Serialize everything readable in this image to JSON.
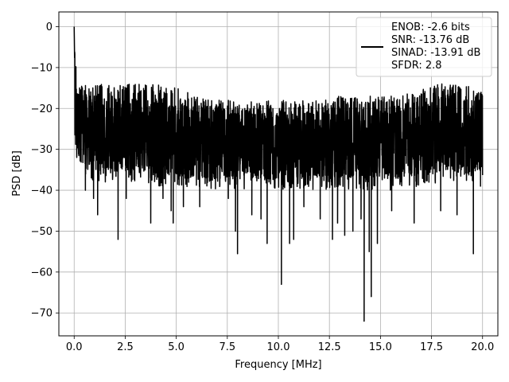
{
  "chart_data": {
    "type": "line",
    "title": "",
    "xlabel": "Frequency [MHz]",
    "ylabel": "PSD [dB]",
    "xlim": [
      -0.75,
      20.75
    ],
    "ylim": [
      -75.6,
      3.6
    ],
    "xticks": [
      0.0,
      2.5,
      5.0,
      7.5,
      10.0,
      12.5,
      15.0,
      17.5,
      20.0
    ],
    "xtick_labels": [
      "0.0",
      "2.5",
      "5.0",
      "7.5",
      "10.0",
      "12.5",
      "15.0",
      "17.5",
      "20.0"
    ],
    "yticks": [
      0,
      -10,
      -20,
      -30,
      -40,
      -50,
      -60,
      -70
    ],
    "ytick_labels": [
      "0",
      "−10",
      "−20",
      "−30",
      "−40",
      "−50",
      "−60",
      "−70"
    ],
    "grid": true,
    "legend_position": "top-right",
    "legend_lines": [
      "ENOB: -2.6 bits",
      "SNR: -13.76 dB",
      "SINAD: -13.91 dB",
      "SFDR: 2.8"
    ],
    "series": [
      {
        "color": "#000000",
        "band": {
          "x": [
            0.0,
            0.05,
            0.1,
            0.2,
            0.4,
            1,
            2,
            3,
            4,
            5,
            6,
            7,
            8,
            9,
            10,
            11,
            12,
            13,
            14,
            15,
            16,
            17,
            18,
            19,
            20
          ],
          "upper": [
            0,
            -4,
            -10,
            -13,
            -14,
            -14,
            -14,
            -14,
            -14,
            -15,
            -17,
            -18,
            -18,
            -18,
            -18,
            -18,
            -18,
            -17,
            -17,
            -17,
            -17,
            -15,
            -14,
            -14,
            -16
          ],
          "lower": [
            -26,
            -31,
            -33,
            -34,
            -36,
            -38,
            -38,
            -38,
            -39,
            -39,
            -40,
            -40,
            -40,
            -40,
            -40,
            -40,
            -40,
            -40,
            -40,
            -40,
            -40,
            -39,
            -38,
            -38,
            -38
          ]
        },
        "dips": [
          {
            "x": 0.55,
            "y": -40
          },
          {
            "x": 0.95,
            "y": -42
          },
          {
            "x": 1.15,
            "y": -46
          },
          {
            "x": 2.15,
            "y": -52
          },
          {
            "x": 2.55,
            "y": -42
          },
          {
            "x": 3.75,
            "y": -48
          },
          {
            "x": 4.35,
            "y": -42
          },
          {
            "x": 4.75,
            "y": -45
          },
          {
            "x": 4.85,
            "y": -48
          },
          {
            "x": 5.35,
            "y": -44
          },
          {
            "x": 6.15,
            "y": -44
          },
          {
            "x": 7.55,
            "y": -42
          },
          {
            "x": 7.9,
            "y": -50
          },
          {
            "x": 8.0,
            "y": -55.5
          },
          {
            "x": 8.7,
            "y": -46
          },
          {
            "x": 9.15,
            "y": -47
          },
          {
            "x": 9.45,
            "y": -53
          },
          {
            "x": 10.15,
            "y": -63
          },
          {
            "x": 10.55,
            "y": -53
          },
          {
            "x": 10.75,
            "y": -52
          },
          {
            "x": 11.25,
            "y": -44
          },
          {
            "x": 12.05,
            "y": -47
          },
          {
            "x": 12.65,
            "y": -52
          },
          {
            "x": 12.9,
            "y": -48
          },
          {
            "x": 13.25,
            "y": -51
          },
          {
            "x": 13.65,
            "y": -50
          },
          {
            "x": 14.05,
            "y": -47
          },
          {
            "x": 14.2,
            "y": -72
          },
          {
            "x": 14.45,
            "y": -55
          },
          {
            "x": 14.55,
            "y": -66
          },
          {
            "x": 14.85,
            "y": -53
          },
          {
            "x": 15.55,
            "y": -45
          },
          {
            "x": 16.65,
            "y": -48
          },
          {
            "x": 17.95,
            "y": -45
          },
          {
            "x": 18.75,
            "y": -46
          },
          {
            "x": 19.55,
            "y": -55.5
          },
          {
            "x": 19.9,
            "y": -39
          }
        ]
      }
    ]
  }
}
